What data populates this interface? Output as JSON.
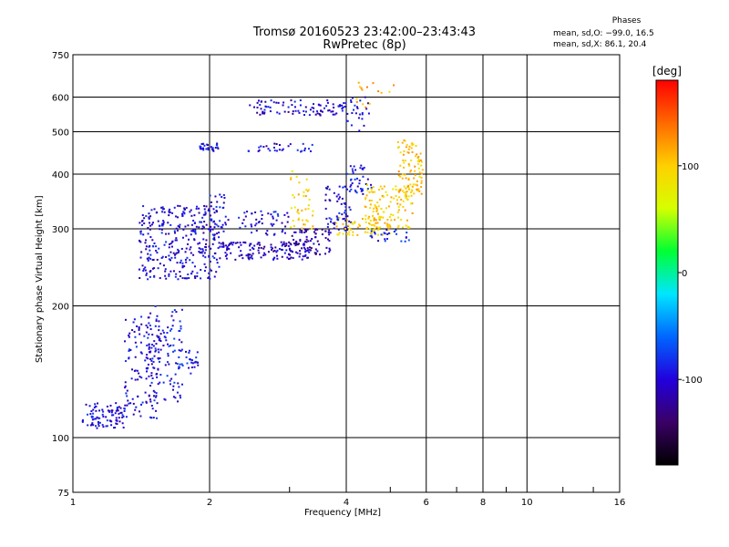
{
  "chart_data": {
    "type": "scatter",
    "title": "Tromsø 20160523 23:42:00–23:43:43",
    "subtitle": "RwPretec (8p)",
    "xlabel": "Frequency [MHz]",
    "ylabel": "Stationary phase Virtual Height [km]",
    "x_scale": "log",
    "y_scale": "log",
    "xlim": [
      1,
      16
    ],
    "ylim": [
      75,
      750
    ],
    "x_ticks": [
      1,
      2,
      4,
      6,
      8,
      10,
      16
    ],
    "y_ticks": [
      75,
      100,
      200,
      300,
      400,
      500,
      600,
      750
    ],
    "grid": true,
    "stats": {
      "heading": "Phases",
      "line_o": "mean, sd,O: −99.0, 16.5",
      "line_x": "mean, sd,X:  86.1, 20.4"
    },
    "colorbar": {
      "label": "[deg]",
      "ticks": [
        100,
        0,
        -100
      ],
      "range": [
        -180,
        180
      ],
      "colors": [
        "#000000",
        "#3a0066",
        "#2200dd",
        "#0066ff",
        "#00e6ff",
        "#00ff33",
        "#d6ff00",
        "#ffd000",
        "#ff6a00",
        "#ff0000"
      ]
    },
    "series": [
      {
        "values": [
          {
            "f_min": 1.05,
            "f_max": 1.3,
            "h_min": 105,
            "h_max": 120,
            "phase": -100,
            "n": 90
          },
          {
            "f_min": 1.3,
            "f_max": 1.55,
            "h_min": 110,
            "h_max": 190,
            "phase": -100,
            "n": 120
          },
          {
            "f_min": 1.45,
            "f_max": 1.75,
            "h_min": 120,
            "h_max": 200,
            "phase": -95,
            "n": 110
          },
          {
            "f_min": 1.7,
            "f_max": 1.9,
            "h_min": 140,
            "h_max": 160,
            "phase": -90,
            "n": 30
          },
          {
            "f_min": 1.4,
            "f_max": 2.1,
            "h_min": 230,
            "h_max": 340,
            "phase": -100,
            "n": 320
          },
          {
            "f_min": 2.0,
            "f_max": 2.2,
            "h_min": 270,
            "h_max": 360,
            "phase": -100,
            "n": 40
          },
          {
            "f_min": 2.1,
            "f_max": 3.3,
            "h_min": 255,
            "h_max": 280,
            "phase": -110,
            "n": 140
          },
          {
            "f_min": 2.3,
            "f_max": 3.0,
            "h_min": 290,
            "h_max": 330,
            "phase": -100,
            "n": 50
          },
          {
            "f_min": 3.0,
            "f_max": 3.7,
            "h_min": 262,
            "h_max": 300,
            "phase": -115,
            "n": 70
          },
          {
            "f_min": 3.6,
            "f_max": 4.1,
            "h_min": 295,
            "h_max": 380,
            "phase": -100,
            "n": 60
          },
          {
            "f_min": 4.0,
            "f_max": 4.6,
            "h_min": 360,
            "h_max": 420,
            "phase": -95,
            "n": 40
          },
          {
            "f_min": 1.9,
            "f_max": 2.1,
            "h_min": 450,
            "h_max": 470,
            "phase": -100,
            "n": 30
          },
          {
            "f_min": 2.45,
            "f_max": 4.0,
            "h_min": 545,
            "h_max": 590,
            "phase": -105,
            "n": 90
          },
          {
            "f_min": 4.0,
            "f_max": 4.5,
            "h_min": 500,
            "h_max": 600,
            "phase": -95,
            "n": 25
          },
          {
            "f_min": 2.4,
            "f_max": 3.4,
            "h_min": 450,
            "h_max": 470,
            "phase": -100,
            "n": 30
          },
          {
            "f_min": 3.0,
            "f_max": 3.4,
            "h_min": 290,
            "h_max": 410,
            "phase": 100,
            "n": 40
          },
          {
            "f_min": 3.8,
            "f_max": 5.0,
            "h_min": 290,
            "h_max": 320,
            "phase": 95,
            "n": 60
          },
          {
            "f_min": 4.4,
            "f_max": 5.6,
            "h_min": 300,
            "h_max": 380,
            "phase": 100,
            "n": 120
          },
          {
            "f_min": 5.2,
            "f_max": 5.9,
            "h_min": 360,
            "h_max": 480,
            "phase": 105,
            "n": 90
          },
          {
            "f_min": 4.5,
            "f_max": 5.5,
            "h_min": 280,
            "h_max": 300,
            "phase": -90,
            "n": 25
          },
          {
            "f_min": 4.2,
            "f_max": 5.1,
            "h_min": 560,
            "h_max": 650,
            "phase": 110,
            "n": 15
          }
        ]
      }
    ]
  }
}
